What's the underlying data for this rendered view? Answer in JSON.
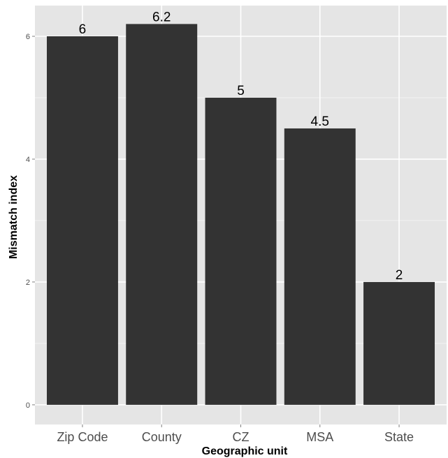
{
  "chart_data": {
    "type": "bar",
    "title": "",
    "xlabel": "Geographic unit",
    "ylabel": "Mismatch index",
    "categories": [
      "Zip Code",
      "County",
      "CZ",
      "MSA",
      "State"
    ],
    "values": [
      6,
      6.2,
      5,
      4.5,
      2
    ],
    "data_labels": [
      "6",
      "6.2",
      "5",
      "4.5",
      "2"
    ],
    "yticks": [
      0,
      2,
      4,
      6
    ],
    "ytick_labels": [
      "0",
      "2",
      "4",
      "6"
    ],
    "ylim": [
      -0.32,
      6.5
    ],
    "grid": true,
    "legend": "none",
    "colors": {
      "bar": "#333333",
      "panel_background": "#e5e5e5",
      "grid_major": "#ffffff",
      "grid_minor": "#f2f2f2"
    }
  }
}
